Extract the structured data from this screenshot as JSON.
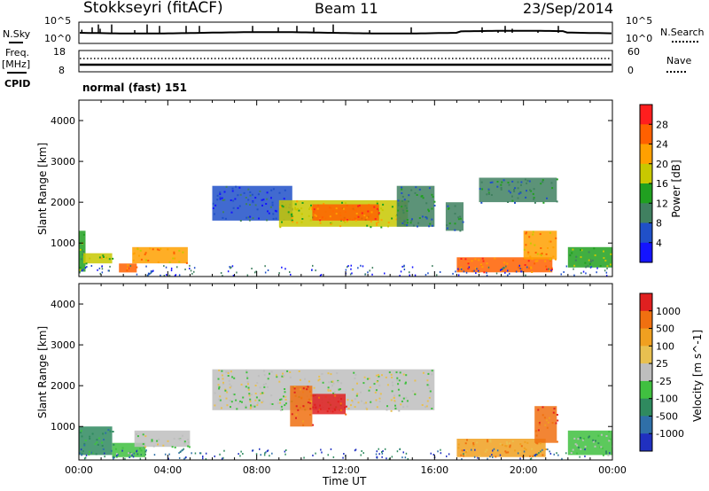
{
  "header": {
    "station": "Stokkseyri (fitACF)",
    "beam": "Beam 11",
    "date": "23/Sep/2014"
  },
  "top_panels": {
    "nsky_label": "N.Sky",
    "nsky_ticks": [
      "10^5",
      "10^0"
    ],
    "nsearch_label": "N.Search",
    "nsearch_ticks": [
      "10^5",
      "10^0"
    ],
    "freq_label": "Freq.",
    "freq_unit": "[MHz]",
    "freq_ticks": [
      "18",
      "8"
    ],
    "nave_label": "Nave",
    "nave_ticks": [
      "60",
      "0"
    ],
    "cpid_label": "CPID",
    "cpid_value": "normal (fast) 151"
  },
  "colors": {
    "power_scale": [
      "#1414ff",
      "#2050c8",
      "#408060",
      "#20a020",
      "#c8c800",
      "#ffa000",
      "#ff6000",
      "#ff1e1e"
    ],
    "velocity_scale": [
      "#2030c0",
      "#2f6fa8",
      "#2f8a5f",
      "#40c040",
      "#bebebe",
      "#e8c050",
      "#f0a020",
      "#f07010",
      "#e02020"
    ]
  },
  "chart_data": [
    {
      "type": "heatmap",
      "title": "Power",
      "ylabel": "Slant Range [km]",
      "xlabel": "",
      "ylim": [
        180,
        4500
      ],
      "xlim": [
        0,
        24
      ],
      "yticks": [
        1000,
        2000,
        3000,
        4000
      ],
      "xticks": [
        "00:00",
        "04:00",
        "08:00",
        "12:00",
        "16:00",
        "20:00",
        "00:00"
      ],
      "colorbar": {
        "label": "Power [dB]",
        "ticks": [
          "4",
          "8",
          "12",
          "16",
          "20",
          "24",
          "28"
        ]
      },
      "regions": [
        {
          "t0": 0.0,
          "t1": 0.3,
          "r0": 300,
          "r1": 1300,
          "level": 3
        },
        {
          "t0": 0.2,
          "t1": 1.5,
          "r0": 500,
          "r1": 750,
          "level": 4
        },
        {
          "t0": 1.8,
          "t1": 2.6,
          "r0": 280,
          "r1": 500,
          "level": 6
        },
        {
          "t0": 2.4,
          "t1": 4.9,
          "r0": 500,
          "r1": 900,
          "level": 5
        },
        {
          "t0": 6.0,
          "t1": 9.6,
          "r0": 1550,
          "r1": 2400,
          "level": 1
        },
        {
          "t0": 9.0,
          "t1": 14.8,
          "r0": 1400,
          "r1": 2050,
          "level": 4
        },
        {
          "t0": 10.5,
          "t1": 13.5,
          "r0": 1550,
          "r1": 1950,
          "level": 6
        },
        {
          "t0": 14.3,
          "t1": 16.0,
          "r0": 1400,
          "r1": 2400,
          "level": 2
        },
        {
          "t0": 16.5,
          "t1": 17.3,
          "r0": 1300,
          "r1": 2000,
          "level": 2
        },
        {
          "t0": 17.0,
          "t1": 21.3,
          "r0": 280,
          "r1": 650,
          "level": 6
        },
        {
          "t0": 18.0,
          "t1": 21.5,
          "r0": 2000,
          "r1": 2600,
          "level": 2
        },
        {
          "t0": 20.0,
          "t1": 21.5,
          "r0": 600,
          "r1": 1300,
          "level": 5
        },
        {
          "t0": 22.0,
          "t1": 24.0,
          "r0": 400,
          "r1": 900,
          "level": 3
        }
      ]
    },
    {
      "type": "heatmap",
      "title": "Velocity",
      "ylabel": "Slant Range [km]",
      "xlabel": "Time UT",
      "ylim": [
        180,
        4500
      ],
      "xlim": [
        0,
        24
      ],
      "yticks": [
        1000,
        2000,
        3000,
        4000
      ],
      "xticks": [
        "00:00",
        "04:00",
        "08:00",
        "12:00",
        "16:00",
        "20:00",
        "00:00"
      ],
      "colorbar": {
        "label": "Velocity [m s^-1]",
        "ticks": [
          "1000",
          "500",
          "100",
          "25",
          "-25",
          "-100",
          "-500",
          "-1000"
        ]
      },
      "regions": [
        {
          "t0": 0.0,
          "t1": 1.5,
          "r0": 300,
          "r1": 1000,
          "level": 2
        },
        {
          "t0": 1.5,
          "t1": 3.0,
          "r0": 250,
          "r1": 600,
          "level": 3
        },
        {
          "t0": 2.5,
          "t1": 5.0,
          "r0": 500,
          "r1": 900,
          "level": 4
        },
        {
          "t0": 6.0,
          "t1": 16.0,
          "r0": 1400,
          "r1": 2400,
          "level": 4
        },
        {
          "t0": 9.5,
          "t1": 10.5,
          "r0": 1000,
          "r1": 2000,
          "level": 7
        },
        {
          "t0": 10.5,
          "t1": 12.0,
          "r0": 1300,
          "r1": 1800,
          "level": 8
        },
        {
          "t0": 17.0,
          "t1": 21.0,
          "r0": 250,
          "r1": 700,
          "level": 6
        },
        {
          "t0": 20.5,
          "t1": 21.5,
          "r0": 600,
          "r1": 1500,
          "level": 7
        },
        {
          "t0": 22.0,
          "t1": 24.0,
          "r0": 300,
          "r1": 900,
          "level": 3
        }
      ]
    }
  ]
}
